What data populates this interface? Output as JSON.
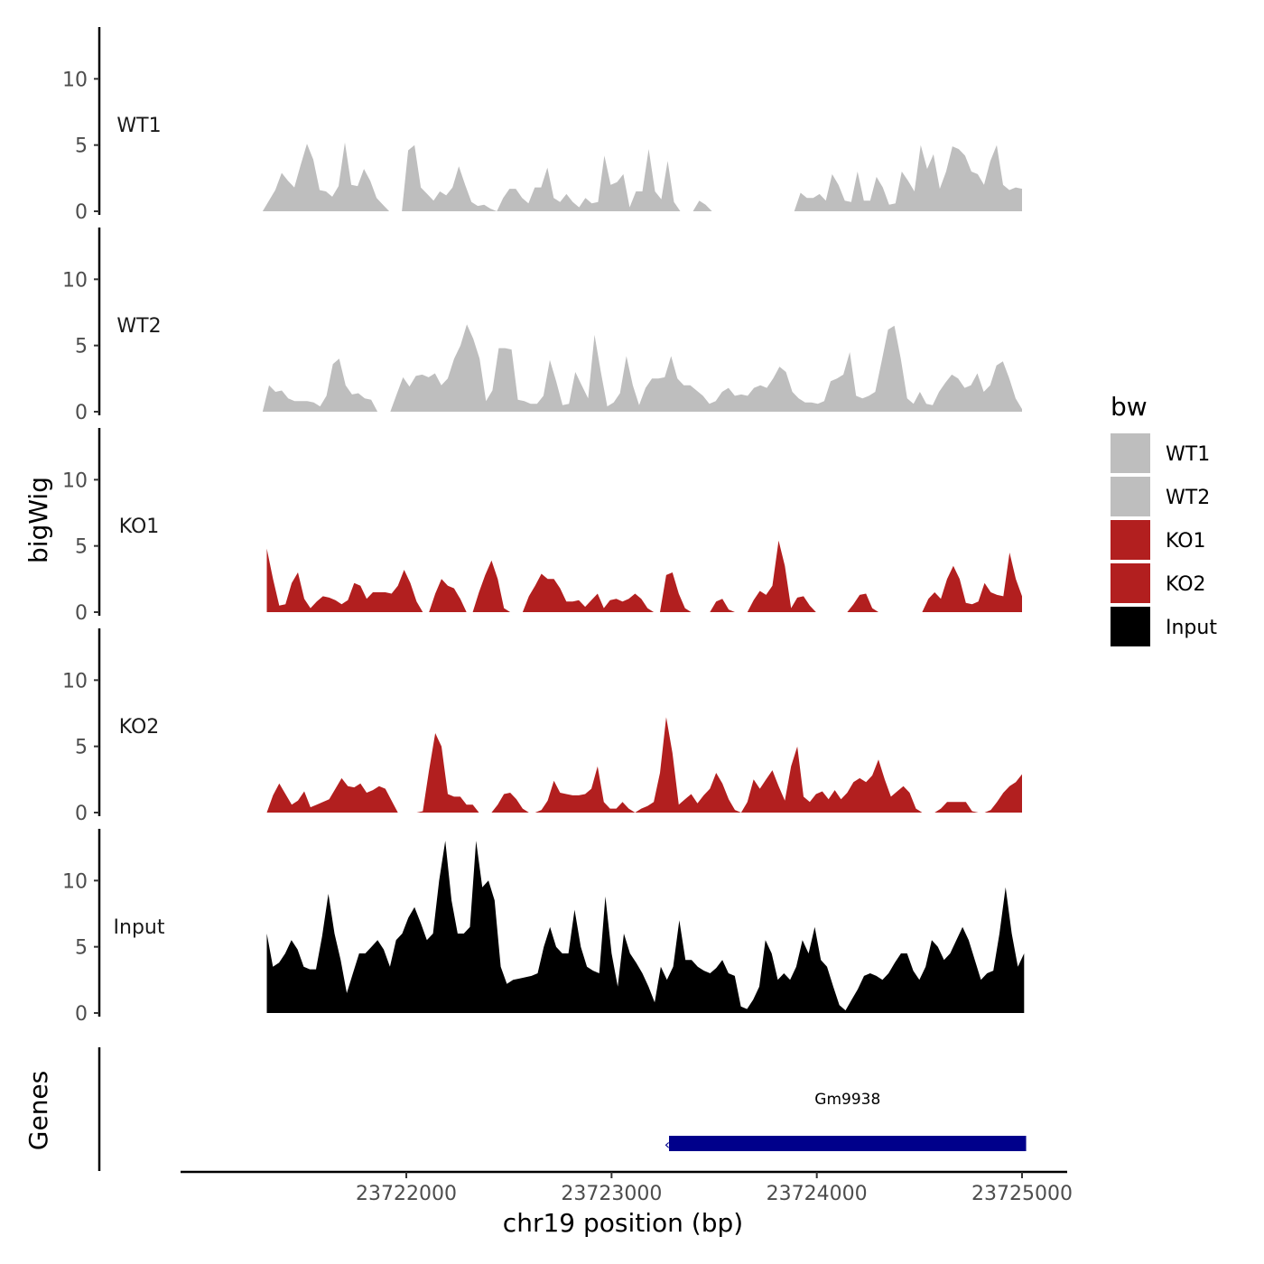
{
  "chart_data": {
    "type": "area",
    "ylabel": "bigWig",
    "xlabel": "chr19 position (bp)",
    "genes_label": "Genes",
    "ylim": [
      0,
      13.5
    ],
    "yticks": [
      0,
      5,
      10
    ],
    "xlim": [
      23720900,
      23725220
    ],
    "xticks": [
      23722000,
      23723000,
      23724000,
      23725000
    ],
    "xtick_labels": [
      "23722000",
      "23723000",
      "23724000",
      "23725000"
    ],
    "legend": {
      "title": "bw",
      "entries": [
        {
          "label": "WT1",
          "color": "#bebebe"
        },
        {
          "label": "WT2",
          "color": "#bebebe"
        },
        {
          "label": "KO1",
          "color": "#b21f1f"
        },
        {
          "label": "KO2",
          "color": "#b21f1f"
        },
        {
          "label": "Input",
          "color": "#000000"
        }
      ]
    },
    "tracks": [
      {
        "name": "WT1",
        "color": "#bebebe",
        "x_start": 23721300,
        "x_end": 23725000,
        "values": [
          0,
          0.8,
          1.6,
          2.9,
          2.3,
          1.8,
          3.5,
          5.1,
          3.9,
          1.6,
          1.5,
          1.1,
          1.9,
          5.2,
          2.0,
          1.9,
          3.2,
          2.3,
          1.0,
          0.5,
          0,
          0,
          0,
          4.6,
          5.0,
          1.8,
          1.3,
          0.8,
          1.5,
          1.2,
          1.8,
          3.4,
          2.0,
          0.7,
          0.4,
          0.5,
          0.2,
          0,
          1.0,
          1.7,
          1.7,
          1.0,
          0.6,
          1.8,
          1.8,
          3.3,
          1.0,
          0.7,
          1.3,
          0.7,
          0.3,
          1.0,
          0.6,
          0.7,
          4.2,
          2.0,
          2.2,
          2.8,
          0.3,
          1.5,
          1.5,
          4.7,
          1.5,
          0.9,
          3.8,
          0.7,
          0,
          0,
          0,
          0.8,
          0.5,
          0,
          0,
          0,
          0,
          0,
          0,
          0,
          0,
          0,
          0,
          0,
          0,
          0,
          0,
          1.4,
          1.0,
          1.0,
          1.3,
          0.8,
          2.8,
          2.0,
          0.8,
          0.7,
          3.0,
          0.8,
          0.8,
          2.6,
          1.8,
          0.5,
          0.6,
          3.0,
          2.3,
          1.5,
          5.0,
          3.2,
          4.3,
          1.7,
          3.0,
          4.9,
          4.7,
          4.2,
          3.0,
          2.8,
          2.0,
          3.8,
          5.0,
          2.0,
          1.6,
          1.8,
          1.7
        ]
      },
      {
        "name": "WT2",
        "color": "#bebebe",
        "x_start": 23721300,
        "x_end": 23725000,
        "values": [
          0,
          2.0,
          1.5,
          1.6,
          1.0,
          0.8,
          0.8,
          0.8,
          0.7,
          0.4,
          1.2,
          3.6,
          4.0,
          2.0,
          1.3,
          1.4,
          1.0,
          0.9,
          0,
          0,
          0,
          1.3,
          2.6,
          1.9,
          2.7,
          2.8,
          2.6,
          2.9,
          2.0,
          2.5,
          4.0,
          5.0,
          6.6,
          5.5,
          4.0,
          0.8,
          1.6,
          4.8,
          4.8,
          4.7,
          0.9,
          0.8,
          0.6,
          0.6,
          1.2,
          3.9,
          2.3,
          0.5,
          0.6,
          3.0,
          2.0,
          1.0,
          5.8,
          3.0,
          0.4,
          0.7,
          1.4,
          4.2,
          2.0,
          0.5,
          1.8,
          2.5,
          2.5,
          2.6,
          4.2,
          2.5,
          2.0,
          2.0,
          1.6,
          1.2,
          0.6,
          0.8,
          1.5,
          1.8,
          1.2,
          1.3,
          1.2,
          1.8,
          2.0,
          1.8,
          2.5,
          3.4,
          3.0,
          1.5,
          1.0,
          0.7,
          0.7,
          0.6,
          0.8,
          2.3,
          2.5,
          2.8,
          4.5,
          1.2,
          1.0,
          1.2,
          1.5,
          3.8,
          6.2,
          6.5,
          4.0,
          1.0,
          0.6,
          1.5,
          0.6,
          0.5,
          1.5,
          2.2,
          2.8,
          2.5,
          1.8,
          2.0,
          2.9,
          1.5,
          2.0,
          3.5,
          3.8,
          2.5,
          1.0,
          0.2
        ]
      },
      {
        "name": "KO1",
        "color": "#b21f1f",
        "x_start": 23721320,
        "x_end": 23725000,
        "values": [
          4.8,
          2.5,
          0.5,
          0.6,
          2.2,
          3.0,
          1.0,
          0.3,
          0.8,
          1.2,
          1.1,
          0.9,
          0.6,
          0.9,
          2.2,
          2.0,
          1.0,
          1.5,
          1.5,
          1.5,
          1.4,
          2.0,
          3.2,
          2.2,
          0.8,
          0,
          0,
          1.4,
          2.5,
          2.0,
          1.8,
          1.0,
          0,
          0,
          1.5,
          2.8,
          3.9,
          2.5,
          0.3,
          0,
          0,
          0,
          1.2,
          2.0,
          2.9,
          2.5,
          2.5,
          1.8,
          0.8,
          0.8,
          0.9,
          0.4,
          0.9,
          1.4,
          0.3,
          0.9,
          1.0,
          0.8,
          1.0,
          1.4,
          1.0,
          0.3,
          0,
          0,
          2.8,
          3.0,
          1.4,
          0.3,
          0,
          0,
          0,
          0,
          0.8,
          1.0,
          0.2,
          0,
          0,
          0,
          0.9,
          1.6,
          1.3,
          2.0,
          5.4,
          3.5,
          0.3,
          1.1,
          1.2,
          0.5,
          0,
          0,
          0,
          0,
          0,
          0,
          0.6,
          1.3,
          1.4,
          0.3,
          0,
          0,
          0,
          0,
          0,
          0,
          0,
          0,
          1.0,
          1.5,
          1.0,
          2.5,
          3.5,
          2.5,
          0.7,
          0.6,
          0.8,
          2.2,
          1.5,
          1.3,
          1.2,
          4.5,
          2.5,
          1.2
        ]
      },
      {
        "name": "KO2",
        "color": "#b21f1f",
        "x_start": 23721320,
        "x_end": 23725000,
        "values": [
          0,
          1.3,
          2.2,
          1.4,
          0.6,
          0.9,
          1.6,
          0.4,
          0.6,
          0.8,
          1.0,
          1.8,
          2.6,
          2.0,
          1.9,
          2.2,
          1.5,
          1.7,
          2.0,
          1.8,
          0.9,
          0,
          0,
          0,
          0,
          0.1,
          3.2,
          6.0,
          5.0,
          1.4,
          1.2,
          1.2,
          0.6,
          0.6,
          0,
          0,
          0,
          0.6,
          1.4,
          1.5,
          1.0,
          0.3,
          0,
          0,
          0.2,
          0.9,
          2.4,
          1.5,
          1.4,
          1.3,
          1.3,
          1.4,
          1.8,
          3.5,
          0.8,
          0.3,
          0.3,
          0.8,
          0.3,
          0,
          0.3,
          0.5,
          0.8,
          3.0,
          7.2,
          4.5,
          0.6,
          1.0,
          1.4,
          0.7,
          1.3,
          1.8,
          3.0,
          2.2,
          1.0,
          0.2,
          0,
          0.8,
          2.5,
          1.8,
          2.5,
          3.2,
          2.0,
          0.9,
          3.5,
          5.0,
          1.2,
          0.8,
          1.4,
          1.6,
          1.0,
          1.7,
          1.0,
          1.5,
          2.3,
          2.6,
          2.3,
          2.8,
          4.0,
          2.5,
          1.2,
          1.6,
          2.0,
          1.5,
          0.3,
          0,
          0,
          0,
          0.3,
          0.8,
          0.8,
          0.8,
          0.8,
          0.1,
          0,
          0,
          0.2,
          0.8,
          1.5,
          2.0,
          2.3,
          2.9
        ]
      },
      {
        "name": "Input",
        "color": "#000000",
        "x_start": 23721320,
        "x_end": 23725010,
        "values": [
          6.0,
          3.5,
          3.8,
          4.5,
          5.5,
          4.8,
          3.5,
          3.3,
          3.3,
          5.8,
          9.0,
          6.0,
          4.0,
          1.5,
          3.0,
          4.5,
          4.5,
          5.0,
          5.5,
          4.8,
          3.5,
          5.5,
          6.0,
          7.2,
          8.0,
          6.8,
          5.5,
          6.0,
          10.0,
          13.0,
          8.5,
          6.0,
          6.0,
          6.5,
          13.0,
          9.5,
          10.0,
          8.5,
          3.5,
          2.2,
          2.5,
          2.6,
          2.7,
          2.8,
          3.0,
          5.0,
          6.5,
          5.0,
          4.5,
          4.5,
          7.8,
          5.0,
          3.5,
          3.2,
          3.0,
          8.8,
          4.5,
          2.0,
          6.0,
          4.5,
          3.8,
          3.0,
          2.0,
          0.8,
          3.5,
          2.5,
          3.5,
          7.0,
          4.0,
          4.0,
          3.5,
          3.2,
          3.0,
          3.4,
          4.0,
          3.0,
          2.8,
          0.5,
          0.3,
          1.0,
          2.0,
          5.5,
          4.5,
          2.5,
          3.0,
          2.5,
          3.5,
          5.5,
          4.5,
          6.5,
          4.0,
          3.5,
          2.0,
          0.6,
          0.2,
          1.0,
          1.8,
          2.8,
          3.0,
          2.8,
          2.5,
          3.0,
          3.8,
          4.5,
          4.5,
          3.2,
          2.5,
          3.5,
          5.5,
          5.0,
          4.0,
          4.5,
          5.5,
          6.5,
          5.5,
          4.0,
          2.5,
          3.0,
          3.2,
          6.0,
          9.5,
          6.0,
          3.5,
          4.5
        ]
      }
    ],
    "gene": {
      "name": "Gm9938",
      "start": 23723280,
      "end": 23725020,
      "color": "#00008b",
      "strand": "-"
    }
  }
}
